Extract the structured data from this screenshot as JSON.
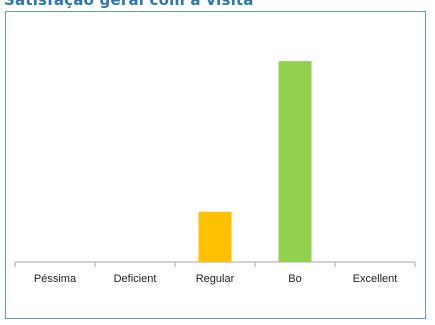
{
  "chart_data": {
    "type": "bar",
    "title": "Satisfação geral com a visita",
    "categories": [
      "Péssima",
      "Deficient",
      "Regular",
      "Bo",
      "Excellent"
    ],
    "values": [
      0,
      0,
      5,
      20,
      0
    ],
    "bar_colors": [
      "#ffc000",
      "#ffc000",
      "#ffc000",
      "#92d050",
      "#92d050"
    ],
    "ylim": [
      0,
      22
    ],
    "xlabel": "",
    "ylabel": "",
    "grid": false,
    "legend": "none"
  },
  "colors": {
    "frame": "#5b9bd5",
    "title": "#2e75b6",
    "axis": "#a6a6a6"
  }
}
